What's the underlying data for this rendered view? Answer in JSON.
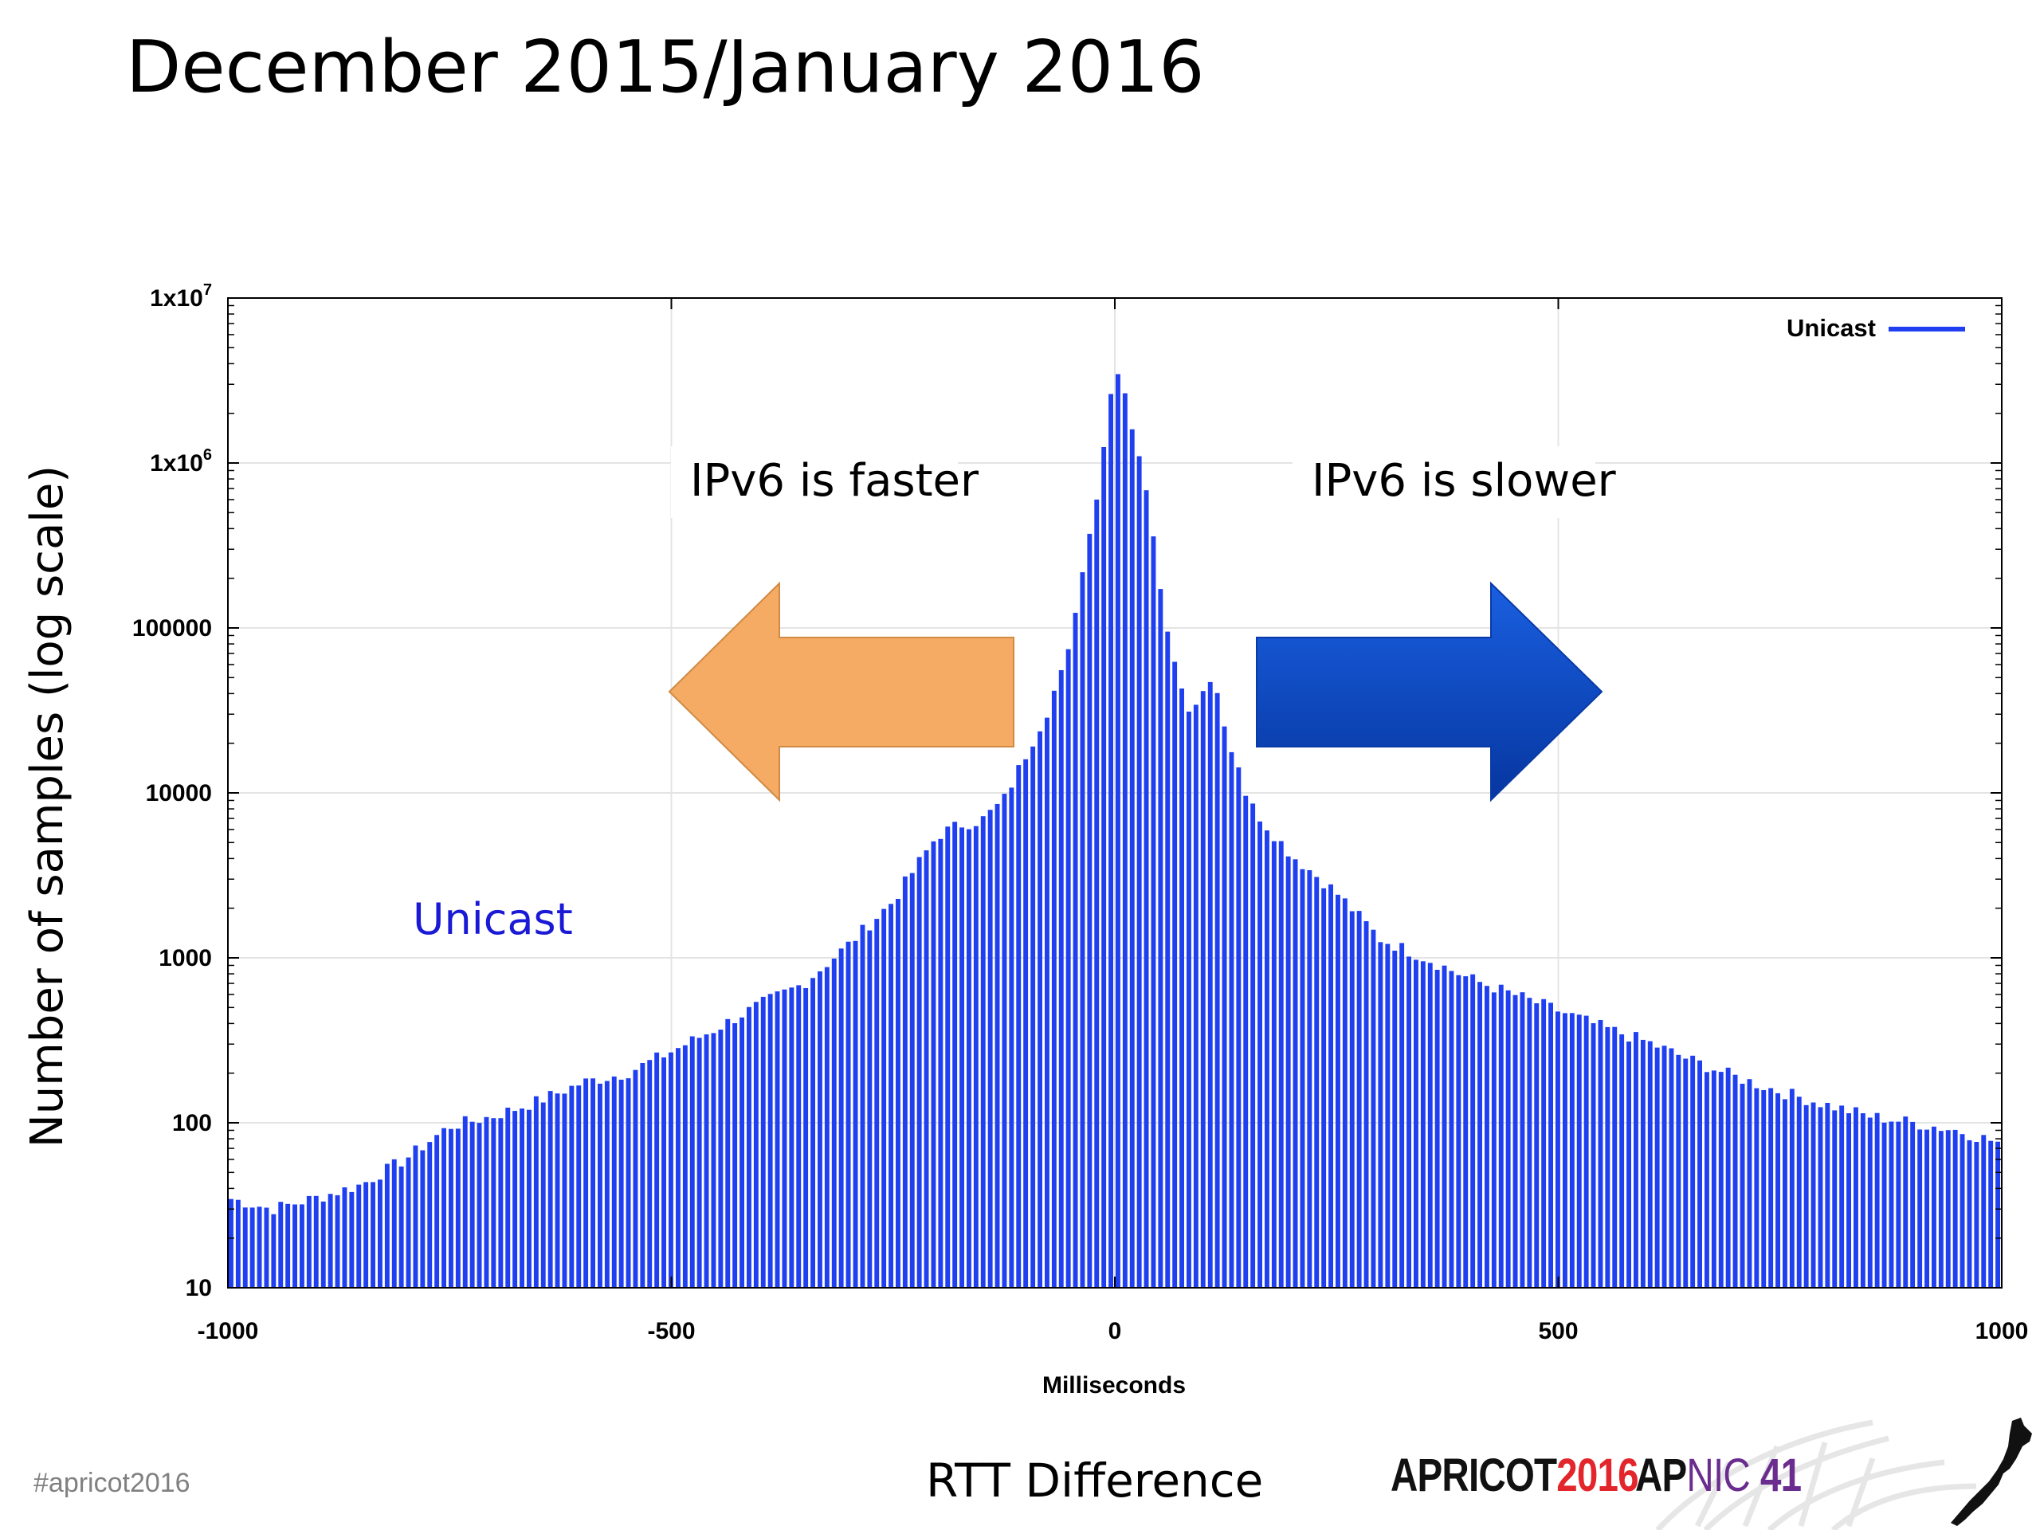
{
  "slide": {
    "title": "December 2015/January 2016",
    "hashtag": "#apricot2016",
    "caption": "RTT Difference",
    "logo_apricot": {
      "word": "APRICOT",
      "year": "2016",
      "word_color": "#111111",
      "year_color": "#e3262c"
    },
    "logo_apnic": {
      "ap": "AP",
      "nic": "NIC",
      "num": "41",
      "ap_color": "#111111",
      "nic_color": "#6a2d8f",
      "num_color": "#6a2d8f"
    },
    "map_icon": "new-zealand-map-icon"
  },
  "chart_data": {
    "type": "bar",
    "xlabel": "Milliseconds",
    "ylabel": "Number of samples (log scale)",
    "yscale": "log",
    "xlim": [
      -1000,
      1000
    ],
    "ylim": [
      10,
      10000000
    ],
    "xticks": [
      -1000,
      -500,
      0,
      500,
      1000
    ],
    "yticks": [
      {
        "value": 10,
        "label": "10",
        "sup": ""
      },
      {
        "value": 100,
        "label": "100",
        "sup": ""
      },
      {
        "value": 1000,
        "label": "1000",
        "sup": ""
      },
      {
        "value": 10000,
        "label": "10000",
        "sup": ""
      },
      {
        "value": 100000,
        "label": "100000",
        "sup": ""
      },
      {
        "value": 1000000,
        "label": "1x10",
        "sup": "6"
      },
      {
        "value": 10000000,
        "label": "1x10",
        "sup": "7"
      }
    ],
    "grid": true,
    "bar_color": "#1f3ff0",
    "bin_width": 8,
    "legend": {
      "position": "top-right",
      "label": "Unicast"
    },
    "series": [
      {
        "name": "Unicast",
        "anchors_x": [
          -1000,
          -950,
          -900,
          -850,
          -800,
          -750,
          -700,
          -650,
          -600,
          -550,
          -500,
          -450,
          -400,
          -350,
          -300,
          -250,
          -200,
          -175,
          -150,
          -125,
          -100,
          -75,
          -50,
          -40,
          -30,
          -20,
          -10,
          0,
          10,
          20,
          30,
          40,
          50,
          60,
          70,
          80,
          90,
          100,
          110,
          120,
          130,
          140,
          150,
          175,
          200,
          250,
          300,
          350,
          400,
          450,
          500,
          550,
          600,
          650,
          700,
          750,
          800,
          850,
          900,
          950,
          1000
        ],
        "anchors_y": [
          35,
          30,
          35,
          42,
          60,
          95,
          110,
          135,
          175,
          200,
          270,
          370,
          520,
          700,
          1200,
          2200,
          5500,
          6400,
          6800,
          9000,
          17000,
          32000,
          80000,
          165000,
          330000,
          600000,
          1500000,
          3800000,
          3000000,
          1600000,
          1000000,
          530000,
          200000,
          95000,
          52000,
          34000,
          32000,
          45000,
          50000,
          35000,
          19000,
          15000,
          9000,
          6000,
          4200,
          2500,
          1300,
          1000,
          750,
          600,
          480,
          380,
          310,
          240,
          190,
          155,
          130,
          110,
          100,
          90,
          75
        ]
      }
    ],
    "annotations": [
      {
        "text": "IPv6 is faster",
        "color": "#000000"
      },
      {
        "text": "IPv6 is slower",
        "color": "#000000"
      },
      {
        "text": "Unicast",
        "color": "#1a1ad6"
      }
    ],
    "arrows": [
      {
        "direction": "left",
        "color": "#f5ab63"
      },
      {
        "direction": "right",
        "color": "#0a44b9"
      }
    ]
  }
}
